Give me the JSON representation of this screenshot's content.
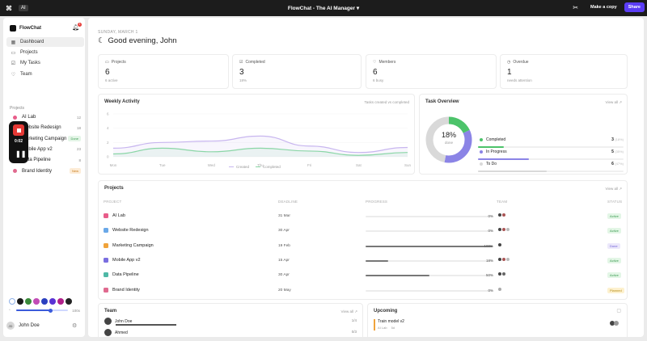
{
  "topbar": {
    "ai": "AI",
    "title": "FlowChat - The AI Manager",
    "make_copy": "Make a copy",
    "share": "Share"
  },
  "sidebar": {
    "brand": "FlowChat",
    "notif_count": "3",
    "nav": [
      "Dashboard",
      "Projects",
      "My Tasks",
      "Team"
    ],
    "section": "Projects",
    "projects": [
      {
        "label": "AI Lab",
        "count": "12",
        "tag": "",
        "color": "#e85d8a"
      },
      {
        "label": "Website Redesign",
        "count": "18",
        "tag": "",
        "color": "#6aa8e8"
      },
      {
        "label": "Marketing Campaign",
        "count": "",
        "tag": "Done",
        "color": "#f0a33b"
      },
      {
        "label": "Mobile App v2",
        "count": "23",
        "tag": "",
        "color": "#7a6ee0"
      },
      {
        "label": "Data Pipeline",
        "count": "8",
        "tag": "",
        "color": "#4fb8a6"
      },
      {
        "label": "Brand Identity",
        "count": "",
        "tag": "New",
        "color": "#e06a8f"
      }
    ],
    "recorder_time": "0:02",
    "zoom": "100x",
    "user": "John Doe",
    "user_initials": "JD"
  },
  "palette": [
    "#ffffff",
    "#1a1a1a",
    "#3a8a3a",
    "#c24bb6",
    "#2a3fbf",
    "#5a32d4",
    "#b0208a",
    "#222222"
  ],
  "header": {
    "date": "SUNDAY, MARCH 1",
    "greeting": "Good evening, John"
  },
  "stats": [
    {
      "label": "Projects",
      "value": "6",
      "sub": "6 active"
    },
    {
      "label": "Completed",
      "value": "3",
      "sub": "18%"
    },
    {
      "label": "Members",
      "value": "6",
      "sub": "6 busy"
    },
    {
      "label": "Overdue",
      "value": "1",
      "sub": "needs attention"
    }
  ],
  "weekly": {
    "title": "Weekly Activity",
    "note": "Tasks created vs completed",
    "legend": [
      "Created",
      "Completed"
    ],
    "y_ticks": [
      "6",
      "4",
      "2",
      "0"
    ]
  },
  "chart_data": {
    "type": "line",
    "title": "Weekly Activity",
    "categories": [
      "Mon",
      "Tue",
      "Wed",
      "Thu",
      "Fri",
      "Sat",
      "Sun"
    ],
    "series": [
      {
        "name": "Created",
        "values": [
          1.2,
          2.0,
          2.2,
          2.9,
          1.5,
          0.6,
          1.3
        ]
      },
      {
        "name": "Completed",
        "values": [
          0.4,
          1.2,
          0.7,
          1.2,
          0.8,
          0.2,
          0.6
        ]
      }
    ],
    "ylim": [
      0,
      6
    ],
    "colors": [
      "#c8b6ef",
      "#8ad6a6"
    ]
  },
  "task_overview": {
    "title": "Task Overview",
    "link": "View all ↗",
    "center_value": "18%",
    "center_label": "done",
    "items": [
      {
        "label": "Completed",
        "count": "3",
        "pct": "(18%)",
        "frac": 0.18,
        "color": "#4cc36a"
      },
      {
        "label": "In Progress",
        "count": "5",
        "pct": "(35%)",
        "frac": 0.35,
        "color": "#8b84e6"
      },
      {
        "label": "To Do",
        "count": "6",
        "pct": "(47%)",
        "frac": 0.47,
        "color": "#d9d9d9"
      }
    ]
  },
  "projects_table": {
    "title": "Projects",
    "link": "View all ↗",
    "headers": [
      "PROJECT",
      "DEADLINE",
      "PROGRESS",
      "TEAM",
      "STATUS"
    ],
    "rows": [
      {
        "name": "AI Lab",
        "deadline": "31 Mar",
        "progress": 0.0,
        "pct": "0%",
        "status": "Active",
        "color": "#e85d8a",
        "team": [
          "#444",
          "#a55"
        ]
      },
      {
        "name": "Website Redesign",
        "deadline": "30 Apr",
        "progress": 0.0,
        "pct": "0%",
        "status": "Active",
        "color": "#6aa8e8",
        "team": [
          "#444",
          "#a55",
          "#bbb"
        ]
      },
      {
        "name": "Marketing Campaign",
        "deadline": "19 Feb",
        "progress": 1.0,
        "pct": "100%",
        "status": "Done",
        "color": "#f0a33b",
        "team": [
          "#444"
        ]
      },
      {
        "name": "Mobile App v2",
        "deadline": "15 Apr",
        "progress": 0.18,
        "pct": "18%",
        "status": "Active",
        "color": "#7a6ee0",
        "team": [
          "#444",
          "#a55",
          "#bbb"
        ]
      },
      {
        "name": "Data Pipeline",
        "deadline": "30 Apr",
        "progress": 0.5,
        "pct": "50%",
        "status": "Active",
        "color": "#4fb8a6",
        "team": [
          "#444",
          "#666"
        ]
      },
      {
        "name": "Brand Identity",
        "deadline": "20 May",
        "progress": 0.0,
        "pct": "0%",
        "status": "Planned",
        "color": "#e06a8f",
        "team": [
          "#aaa"
        ]
      }
    ]
  },
  "team": {
    "title": "Team",
    "link": "View all ↗",
    "members": [
      {
        "name": "John Doe",
        "tasks": "1/4"
      },
      {
        "name": "Ahmed",
        "tasks": "0/3"
      }
    ]
  },
  "upcoming": {
    "title": "Upcoming",
    "items": [
      {
        "title": "Train model v2",
        "meta": "AI Lab",
        "meta2": "5d"
      }
    ]
  }
}
